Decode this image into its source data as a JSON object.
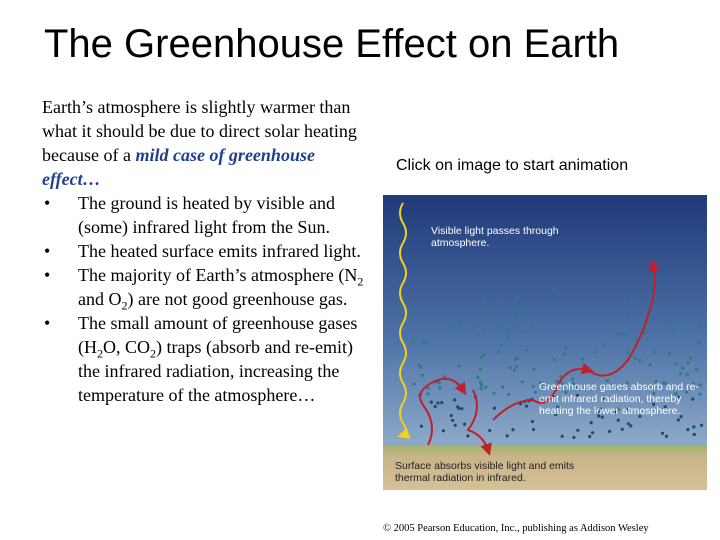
{
  "title": "The Greenhouse Effect on Earth",
  "intro": [
    {
      "text": "Earth’s atmosphere is slightly warmer than what it should be due to direct solar heating because of a "
    },
    {
      "em": "mild case of greenhouse effect…"
    }
  ],
  "bullets": [
    [
      {
        "text": "The ground is heated by visible and (some) infrared light from the Sun."
      }
    ],
    [
      {
        "text": "The heated surface emits infrared light."
      }
    ],
    [
      {
        "text": "The majority of Earth’s atmosphere (N"
      },
      {
        "sub": "2"
      },
      {
        "text": " and O"
      },
      {
        "sub": "2"
      },
      {
        "text": ") are not good greenhouse gas."
      }
    ],
    [
      {
        "text": "The small amount of greenhouse gases (H"
      },
      {
        "sub": "2"
      },
      {
        "text": "O, CO"
      },
      {
        "sub": "2"
      },
      {
        "text": ") traps (absorb and re-emit) the infrared radiation, increasing the temperature of the atmosphere…"
      }
    ]
  ],
  "bullet_symbol": "•",
  "caption": "Click on image to start animation",
  "figure": {
    "label_visible": "Visible light passes through atmosphere.",
    "label_greenhouse": "Greenhouse gases absorb and re-emit infrared radiation, thereby heating the lower atmosphere.",
    "label_surface": "Surface absorbs visible light and emits thermal radiation in infrared."
  },
  "copyright": "© 2005 Pearson Education, Inc., publishing as Addison Wesley"
}
